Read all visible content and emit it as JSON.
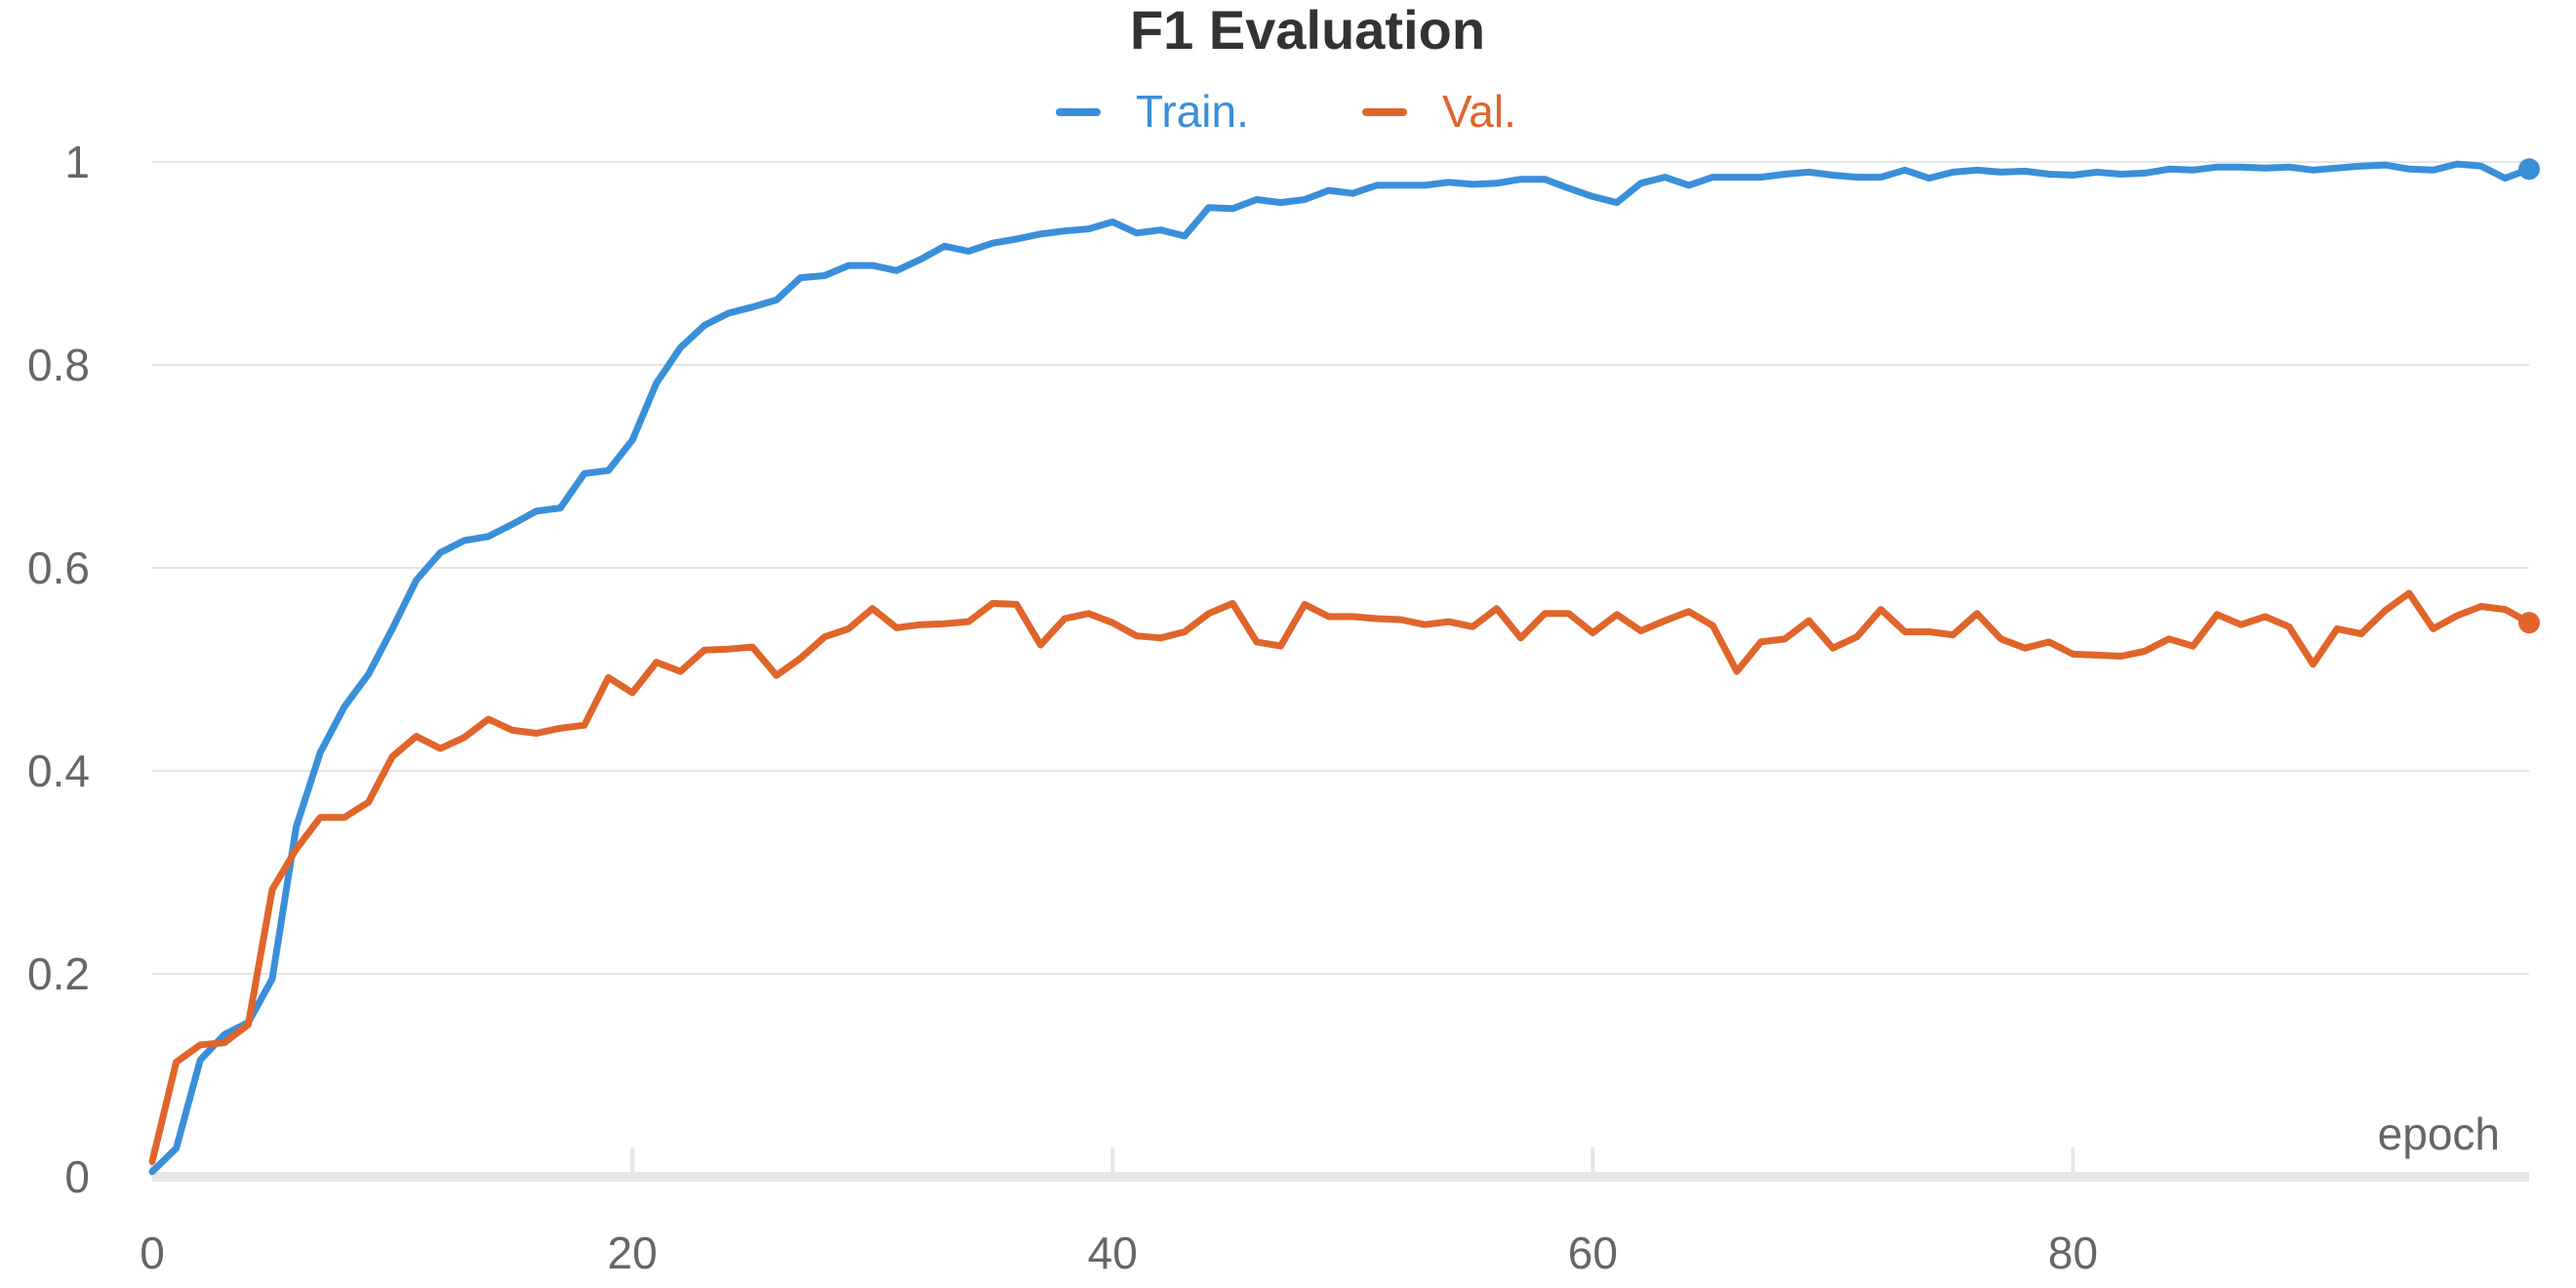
{
  "chart_data": {
    "type": "line",
    "title": "F1 Evaluation",
    "xlabel": "epoch",
    "ylabel": "",
    "xlim": [
      0,
      99
    ],
    "ylim": [
      0,
      1
    ],
    "x_ticks": [
      "0",
      "20",
      "40",
      "60",
      "80"
    ],
    "x_tick_values": [
      0,
      20,
      40,
      60,
      80
    ],
    "y_ticks": [
      "0",
      "0.2",
      "0.4",
      "0.6",
      "0.8",
      "1"
    ],
    "y_tick_values": [
      0,
      0.2,
      0.4,
      0.6,
      0.8,
      1
    ],
    "grid": true,
    "legend_position": "top-center",
    "series": [
      {
        "name": "Train.",
        "color": "#3a8fd9",
        "values": [
          0.005,
          0.028,
          0.115,
          0.14,
          0.152,
          0.195,
          0.345,
          0.418,
          0.463,
          0.495,
          0.54,
          0.588,
          0.615,
          0.627,
          0.631,
          0.643,
          0.656,
          0.659,
          0.693,
          0.696,
          0.726,
          0.782,
          0.817,
          0.839,
          0.851,
          0.857,
          0.864,
          0.886,
          0.888,
          0.898,
          0.898,
          0.893,
          0.904,
          0.917,
          0.912,
          0.92,
          0.924,
          0.929,
          0.932,
          0.934,
          0.941,
          0.93,
          0.933,
          0.927,
          0.955,
          0.954,
          0.963,
          0.96,
          0.963,
          0.972,
          0.969,
          0.977,
          0.977,
          0.977,
          0.98,
          0.978,
          0.979,
          0.983,
          0.983,
          0.974,
          0.966,
          0.96,
          0.979,
          0.985,
          0.977,
          0.985,
          0.985,
          0.985,
          0.988,
          0.99,
          0.987,
          0.985,
          0.985,
          0.992,
          0.984,
          0.99,
          0.992,
          0.99,
          0.991,
          0.988,
          0.987,
          0.99,
          0.988,
          0.989,
          0.993,
          0.992,
          0.995,
          0.995,
          0.994,
          0.995,
          0.992,
          0.994,
          0.996,
          0.997,
          0.993,
          0.992,
          0.998,
          0.996,
          0.984,
          0.993
        ]
      },
      {
        "name": "Val.",
        "color": "#e0652b",
        "values": [
          0.015,
          0.113,
          0.13,
          0.132,
          0.15,
          0.283,
          0.323,
          0.354,
          0.354,
          0.369,
          0.414,
          0.434,
          0.422,
          0.433,
          0.451,
          0.44,
          0.437,
          0.442,
          0.445,
          0.492,
          0.477,
          0.507,
          0.498,
          0.519,
          0.52,
          0.522,
          0.494,
          0.511,
          0.532,
          0.54,
          0.56,
          0.541,
          0.544,
          0.545,
          0.547,
          0.565,
          0.564,
          0.524,
          0.55,
          0.555,
          0.546,
          0.533,
          0.531,
          0.537,
          0.555,
          0.565,
          0.527,
          0.523,
          0.564,
          0.552,
          0.552,
          0.55,
          0.549,
          0.544,
          0.547,
          0.542,
          0.56,
          0.531,
          0.555,
          0.555,
          0.536,
          0.554,
          0.538,
          0.548,
          0.557,
          0.543,
          0.498,
          0.527,
          0.53,
          0.548,
          0.521,
          0.532,
          0.559,
          0.537,
          0.537,
          0.534,
          0.555,
          0.53,
          0.521,
          0.527,
          0.515,
          0.514,
          0.513,
          0.518,
          0.53,
          0.523,
          0.554,
          0.544,
          0.552,
          0.542,
          0.505,
          0.54,
          0.535,
          0.558,
          0.575,
          0.54,
          0.553,
          0.562,
          0.559,
          0.546
        ]
      }
    ]
  }
}
